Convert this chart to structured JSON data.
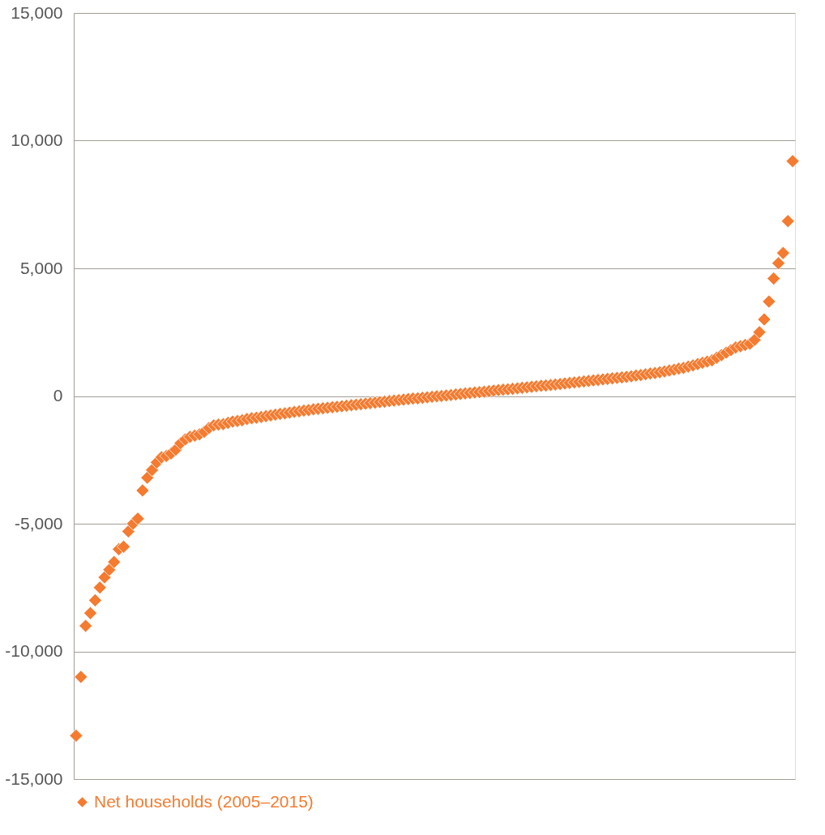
{
  "chart_data": {
    "type": "scatter",
    "categories": [
      null,
      null,
      null,
      null,
      null,
      null,
      null,
      null,
      null,
      null,
      null,
      null,
      null,
      null,
      null,
      null,
      null,
      null,
      null,
      null,
      null,
      null,
      null,
      null,
      null,
      null,
      null,
      null,
      null,
      null,
      null,
      null,
      null,
      null,
      null,
      null,
      null,
      null,
      null,
      null,
      null,
      null,
      null,
      null,
      null,
      null,
      null,
      null,
      null,
      null,
      null,
      null,
      null,
      null,
      null,
      null,
      null,
      null,
      null,
      null,
      null,
      null,
      null,
      null,
      null,
      null,
      null,
      null,
      null,
      null,
      null,
      null,
      null,
      null,
      null,
      null,
      null,
      null,
      null,
      null,
      null,
      null,
      null,
      null,
      null,
      null,
      null,
      null,
      null,
      null,
      null,
      null,
      null,
      null,
      null,
      null,
      null,
      null,
      null,
      null,
      null,
      null,
      null,
      null,
      null,
      null,
      null,
      null,
      null,
      null,
      null,
      null,
      null,
      null,
      null,
      null,
      null,
      null,
      null,
      null,
      null,
      null,
      null,
      null,
      null,
      null,
      null,
      null,
      null,
      null,
      null,
      null,
      null,
      null,
      null,
      null,
      null,
      null,
      null,
      null,
      null,
      null,
      null,
      null,
      null,
      null,
      null,
      null,
      null,
      null,
      null,
      null
    ],
    "series": [
      {
        "name": "Net households (2005–2015)",
        "color": "#f47b30",
        "values": [
          -13300,
          -11000,
          -9000,
          -8500,
          -8000,
          -7500,
          -7100,
          -6800,
          -6500,
          -6000,
          -5900,
          -5300,
          -5000,
          -4800,
          -3700,
          -3200,
          -2900,
          -2600,
          -2400,
          -2350,
          -2250,
          -2100,
          -1850,
          -1700,
          -1600,
          -1550,
          -1500,
          -1400,
          -1250,
          -1150,
          -1120,
          -1100,
          -1050,
          -1000,
          -980,
          -950,
          -900,
          -870,
          -850,
          -820,
          -790,
          -760,
          -730,
          -700,
          -680,
          -650,
          -620,
          -600,
          -570,
          -550,
          -520,
          -500,
          -480,
          -460,
          -440,
          -420,
          -400,
          -380,
          -360,
          -340,
          -320,
          -300,
          -280,
          -260,
          -240,
          -220,
          -200,
          -180,
          -160,
          -140,
          -120,
          -100,
          -90,
          -70,
          -50,
          -30,
          -10,
          0,
          20,
          40,
          60,
          80,
          100,
          120,
          140,
          150,
          170,
          190,
          210,
          230,
          250,
          260,
          280,
          300,
          320,
          340,
          360,
          380,
          400,
          410,
          430,
          450,
          470,
          490,
          510,
          530,
          550,
          570,
          590,
          610,
          630,
          650,
          670,
          690,
          710,
          730,
          750,
          770,
          800,
          820,
          850,
          880,
          900,
          930,
          960,
          1000,
          1030,
          1070,
          1100,
          1150,
          1200,
          1250,
          1300,
          1350,
          1400,
          1500,
          1600,
          1700,
          1800,
          1900,
          1950,
          2000,
          2050,
          2200,
          2500,
          3000,
          3700,
          4600,
          5200,
          5600,
          6850,
          9200
        ]
      }
    ],
    "ylim": [
      -15000,
      15000
    ],
    "yticks": [
      {
        "value": -15000,
        "label": "-15,000"
      },
      {
        "value": -10000,
        "label": "-10,000"
      },
      {
        "value": -5000,
        "label": "-5,000"
      },
      0,
      {
        "value": 5000,
        "label": "5,000"
      },
      {
        "value": 10000,
        "label": "10,000"
      },
      {
        "value": 15000,
        "label": "15,000"
      }
    ],
    "grid": "y",
    "legend": "bottom",
    "marker": "diamond",
    "tick_labels": "y"
  }
}
